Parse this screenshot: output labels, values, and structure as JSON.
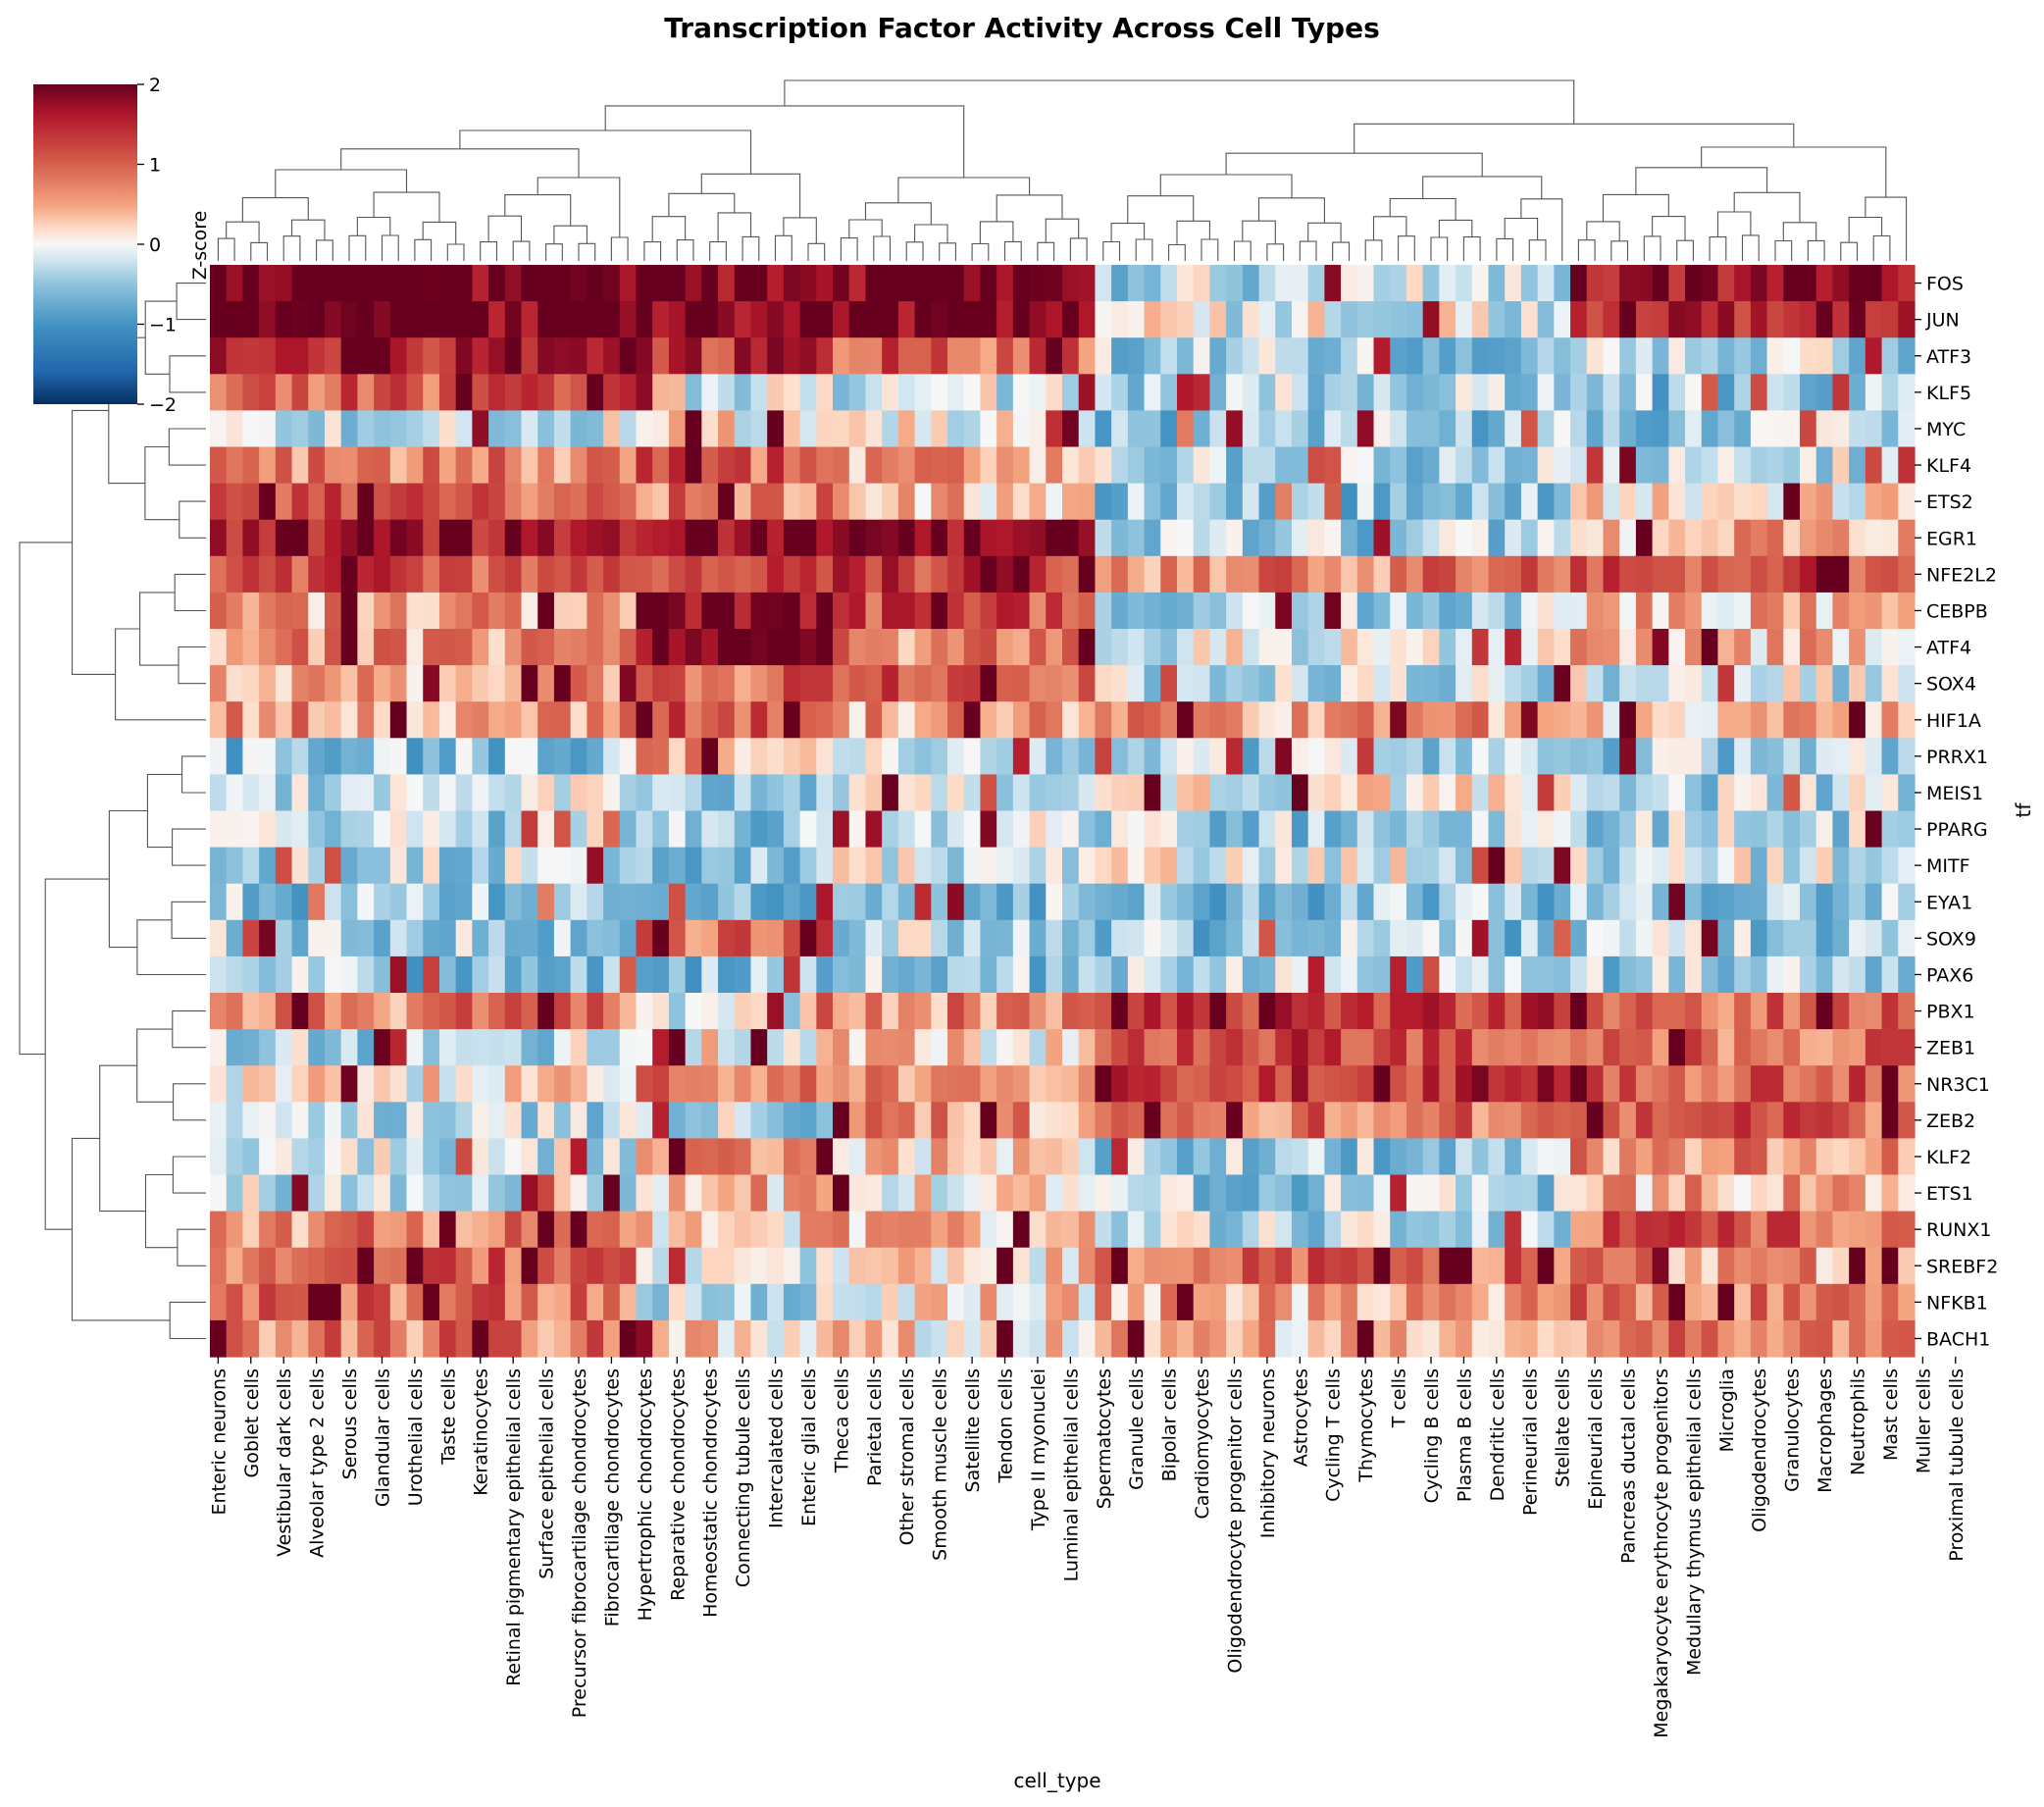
{
  "chart_data": {
    "type": "heatmap",
    "title": "Transcription Factor Activity Across Cell Types",
    "xlabel": "cell_type",
    "ylabel": "tf",
    "colorbar": {
      "label": "Z-score",
      "ticks": [
        "2",
        "1",
        "0",
        "−1",
        "−2"
      ],
      "range": [
        -2,
        2
      ],
      "colormap": "RdBu_r"
    },
    "rows": [
      "FOS",
      "JUN",
      "ATF3",
      "KLF5",
      "MYC",
      "KLF4",
      "ETS2",
      "EGR1",
      "NFE2L2",
      "CEBPB",
      "ATF4",
      "SOX4",
      "HIF1A",
      "PRRX1",
      "MEIS1",
      "PPARG",
      "MITF",
      "EYA1",
      "SOX9",
      "PAX6",
      "PBX1",
      "ZEB1",
      "NR3C1",
      "ZEB2",
      "KLF2",
      "ETS1",
      "RUNX1",
      "SREBF2",
      "NFKB1",
      "BACH1"
    ],
    "column_labels": [
      "Enteric neurons",
      "Goblet cells",
      "Vestibular dark cells",
      "Alveolar type 2 cells",
      "Serous cells",
      "Glandular cells",
      "Urothelial cells",
      "Taste cells",
      "Keratinocytes",
      "Retinal pigmentary epithelial cells",
      "Surface epithelial cells",
      "Precursor fibrocartilage chondrocytes",
      "Fibrocartilage chondrocytes",
      "Hypertrophic chondrocytes",
      "Reparative chondrocytes",
      "Homeostatic chondrocytes",
      "Connecting tubule cells",
      "Intercalated cells",
      "Enteric glial cells",
      "Theca cells",
      "Parietal cells",
      "Other stromal cells",
      "Smooth muscle cells",
      "Satellite cells",
      "Tendon cells",
      "Type II myonuclei",
      "Luminal epithelial cells",
      "Spermatocytes",
      "Granule cells",
      "Bipolar cells",
      "Cardiomyocytes",
      "Oligodendrocyte progenitor cells",
      "Inhibitory neurons",
      "Astrocytes",
      "Cycling T cells",
      "Thymocytes",
      "T cells",
      "Cycling B cells",
      "Plasma B cells",
      "Dendritic cells",
      "Perineurial cells",
      "Stellate cells",
      "Epineurial cells",
      "Pancreas ductal cells",
      "Megakaryocyte erythrocyte progenitors",
      "Medullary thymus epithelial cells",
      "Microglia",
      "Oligodendrocytes",
      "Granulocytes",
      "Macrophages",
      "Neutrophils",
      "Mast cells",
      "Muller cells",
      "Proximal tubule cells"
    ],
    "n_columns": 104,
    "cluster_blocks": [
      {
        "cols": [
          0,
          26
        ],
        "values": [
          2,
          2,
          1.6,
          1.0,
          -0.2,
          0.8,
          1.0,
          1.7,
          1.2,
          0.6,
          0.6,
          0.5,
          0.6,
          -0.5,
          -0.2,
          -0.3,
          -0.3,
          -0.5,
          -0.4,
          -0.5,
          0.8,
          -0.3,
          0.1,
          -0.3,
          -0.2,
          -0.2,
          0.7,
          1.0,
          0.9,
          0.8
        ]
      },
      {
        "cols": [
          26,
          38
        ],
        "values": [
          2,
          2,
          1.4,
          -0.1,
          0.1,
          1.0,
          0.8,
          1.9,
          1.3,
          1.9,
          1.9,
          0.9,
          1.0,
          0.6,
          -0.4,
          -0.5,
          -0.5,
          -0.5,
          0.9,
          -0.5,
          -0.1,
          0.2,
          0.8,
          -0.3,
          0.5,
          0.4,
          0.3,
          -0.2,
          -0.3,
          0.2
        ]
      },
      {
        "cols": [
          38,
          54
        ],
        "values": [
          2,
          2,
          1.0,
          -0.2,
          0.1,
          0.5,
          0.4,
          1.9,
          1.3,
          1.2,
          0.7,
          1.0,
          0.5,
          -0.3,
          -0.2,
          -0.2,
          -0.1,
          -0.5,
          -0.3,
          -0.5,
          0.7,
          0.2,
          0.8,
          0.6,
          0.3,
          0.1,
          0.4,
          0.2,
          0.2,
          0.2
        ]
      },
      {
        "cols": [
          54,
          83
        ],
        "values": [
          -0.3,
          -0.1,
          -0.4,
          -0.4,
          -0.5,
          -0.4,
          -0.5,
          -0.4,
          0.8,
          -0.3,
          -0.1,
          -0.2,
          0.6,
          -0.4,
          0.0,
          -0.4,
          -0.1,
          -0.5,
          -0.5,
          -0.4,
          1.3,
          1.2,
          1.4,
          0.9,
          -0.4,
          -0.4,
          -0.3,
          0.9,
          0.5,
          0.4
        ]
      },
      {
        "cols": [
          83,
          104
        ],
        "values": [
          1.8,
          1.6,
          -0.3,
          -0.5,
          -0.4,
          -0.2,
          0.2,
          0.5,
          1.1,
          0.4,
          0.4,
          -0.2,
          0.4,
          -0.4,
          -0.3,
          -0.3,
          -0.2,
          -0.4,
          -0.4,
          -0.4,
          0.9,
          0.9,
          1.1,
          1.0,
          0.7,
          0.5,
          1.0,
          0.6,
          0.9,
          0.8
        ]
      }
    ]
  }
}
